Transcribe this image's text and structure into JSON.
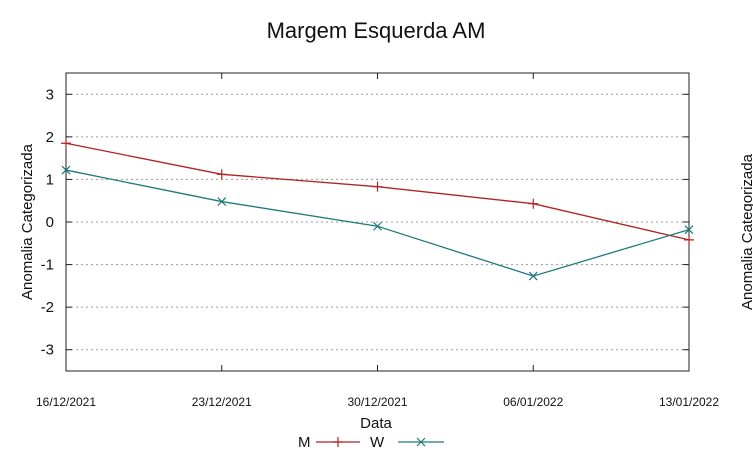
{
  "chart_data": {
    "type": "line",
    "title": "Margem Esquerda AM",
    "xlabel": "Data",
    "ylabel": "Anomalia Categorizada",
    "secondary_ylabel": "Anomalia Categorizada",
    "categories": [
      "16/12/2021",
      "23/12/2021",
      "30/12/2021",
      "06/01/2022",
      "13/01/2022"
    ],
    "y_ticks": [
      -3,
      -2,
      -1,
      0,
      1,
      2,
      3
    ],
    "ylim": [
      -3.5,
      3.5
    ],
    "grid": true,
    "legend_position": "bottom-center",
    "series": [
      {
        "name": "M",
        "values": [
          1.85,
          1.12,
          0.83,
          0.43,
          -0.42
        ],
        "color": "#b22222",
        "marker": "plus"
      },
      {
        "name": "W",
        "values": [
          1.22,
          0.48,
          -0.1,
          -1.27,
          -0.18
        ],
        "color": "#1f7a7a",
        "marker": "x"
      }
    ]
  }
}
